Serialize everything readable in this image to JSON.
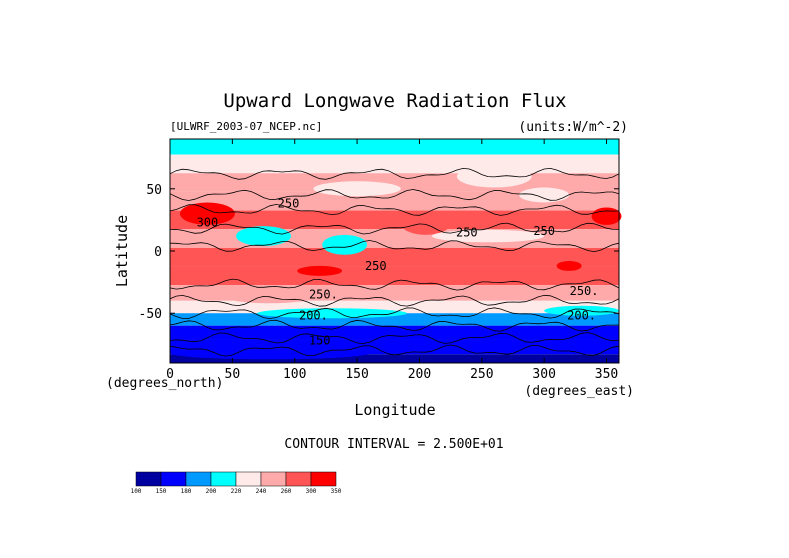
{
  "chart_data": {
    "type": "heatmap",
    "title": "Upward Longwave Radiation Flux",
    "source_label": "[ULWRF_2003-07_NCEP.nc]",
    "units_label": "(units:W/m^-2)",
    "xlabel": "Longitude",
    "ylabel": "Latitude",
    "x_unit_note": "(degrees_east)",
    "y_unit_note": "(degrees_north)",
    "xlim": [
      0,
      360
    ],
    "ylim": [
      -90,
      90
    ],
    "x_ticks": [
      0,
      50,
      100,
      150,
      200,
      250,
      300,
      350
    ],
    "y_ticks": [
      50,
      0,
      -50
    ],
    "contour_interval_text": "CONTOUR INTERVAL = 2.500E+01",
    "contour_labels": [
      {
        "text": "250",
        "lon": 95,
        "lat": 38
      },
      {
        "text": "300",
        "lon": 30,
        "lat": 23
      },
      {
        "text": "250",
        "lon": 238,
        "lat": 15
      },
      {
        "text": "250",
        "lon": 300,
        "lat": 16
      },
      {
        "text": "250",
        "lon": 165,
        "lat": -12
      },
      {
        "text": "250.",
        "lon": 123,
        "lat": -35
      },
      {
        "text": "250.",
        "lon": 332,
        "lat": -32
      },
      {
        "text": "200.",
        "lon": 115,
        "lat": -52
      },
      {
        "text": "200.",
        "lon": 330,
        "lat": -52
      },
      {
        "text": "150",
        "lon": 120,
        "lat": -72
      }
    ],
    "colorbar": {
      "levels": [
        100,
        150,
        180,
        200,
        220,
        240,
        260,
        300,
        350
      ],
      "colors": [
        "#0000a0",
        "#0000ff",
        "#0099ff",
        "#00ffff",
        "#ffeaea",
        "#ffaaaa",
        "#ff5555",
        "#ff0000"
      ]
    },
    "latitudinal_profile": [
      {
        "lat": 85,
        "value": 215
      },
      {
        "lat": 70,
        "value": 235
      },
      {
        "lat": 55,
        "value": 240
      },
      {
        "lat": 40,
        "value": 255
      },
      {
        "lat": 25,
        "value": 285
      },
      {
        "lat": 10,
        "value": 245
      },
      {
        "lat": -5,
        "value": 270
      },
      {
        "lat": -20,
        "value": 275
      },
      {
        "lat": -35,
        "value": 245
      },
      {
        "lat": -45,
        "value": 220
      },
      {
        "lat": -55,
        "value": 195
      },
      {
        "lat": -65,
        "value": 175
      },
      {
        "lat": -78,
        "value": 150
      },
      {
        "lat": -88,
        "value": 140
      }
    ]
  }
}
